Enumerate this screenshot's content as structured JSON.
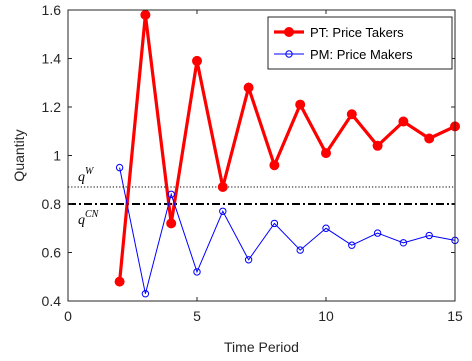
{
  "chart_data": {
    "type": "line",
    "xlabel": "Time Period",
    "ylabel": "Quantity",
    "xlim": [
      0,
      15
    ],
    "ylim": [
      0.4,
      1.6
    ],
    "xticks": [
      0,
      5,
      10,
      15
    ],
    "yticks": [
      0.4,
      0.6,
      0.8,
      1.0,
      1.2,
      1.4,
      1.6
    ],
    "xtick_labels": [
      "0",
      "5",
      "10",
      "15"
    ],
    "ytick_labels": [
      "0.4",
      "0.6",
      "0.8",
      "1",
      "1.2",
      "1.4",
      "1.6"
    ],
    "grid": false,
    "legend_position": "top-right",
    "series": [
      {
        "name": "PT: Price Takers",
        "color": "#ff0000",
        "marker": "filled-circle",
        "x": [
          2,
          3,
          4,
          5,
          6,
          7,
          8,
          9,
          10,
          11,
          12,
          13,
          14,
          15
        ],
        "y": [
          0.48,
          1.58,
          0.72,
          1.39,
          0.87,
          1.28,
          0.96,
          1.21,
          1.01,
          1.17,
          1.04,
          1.14,
          1.07,
          1.12
        ]
      },
      {
        "name": "PM: Price Makers",
        "color": "#0000ff",
        "marker": "open-circle",
        "x": [
          2,
          3,
          4,
          5,
          6,
          7,
          8,
          9,
          10,
          11,
          12,
          13,
          14,
          15
        ],
        "y": [
          0.95,
          0.43,
          0.84,
          0.52,
          0.77,
          0.57,
          0.72,
          0.61,
          0.7,
          0.63,
          0.68,
          0.64,
          0.67,
          0.65
        ]
      }
    ],
    "reference_lines": [
      {
        "label": "q",
        "superscript": "W",
        "y": 0.87,
        "style": "dotted"
      },
      {
        "label": "q",
        "superscript": "CN",
        "y": 0.8,
        "style": "dashdot"
      }
    ]
  }
}
